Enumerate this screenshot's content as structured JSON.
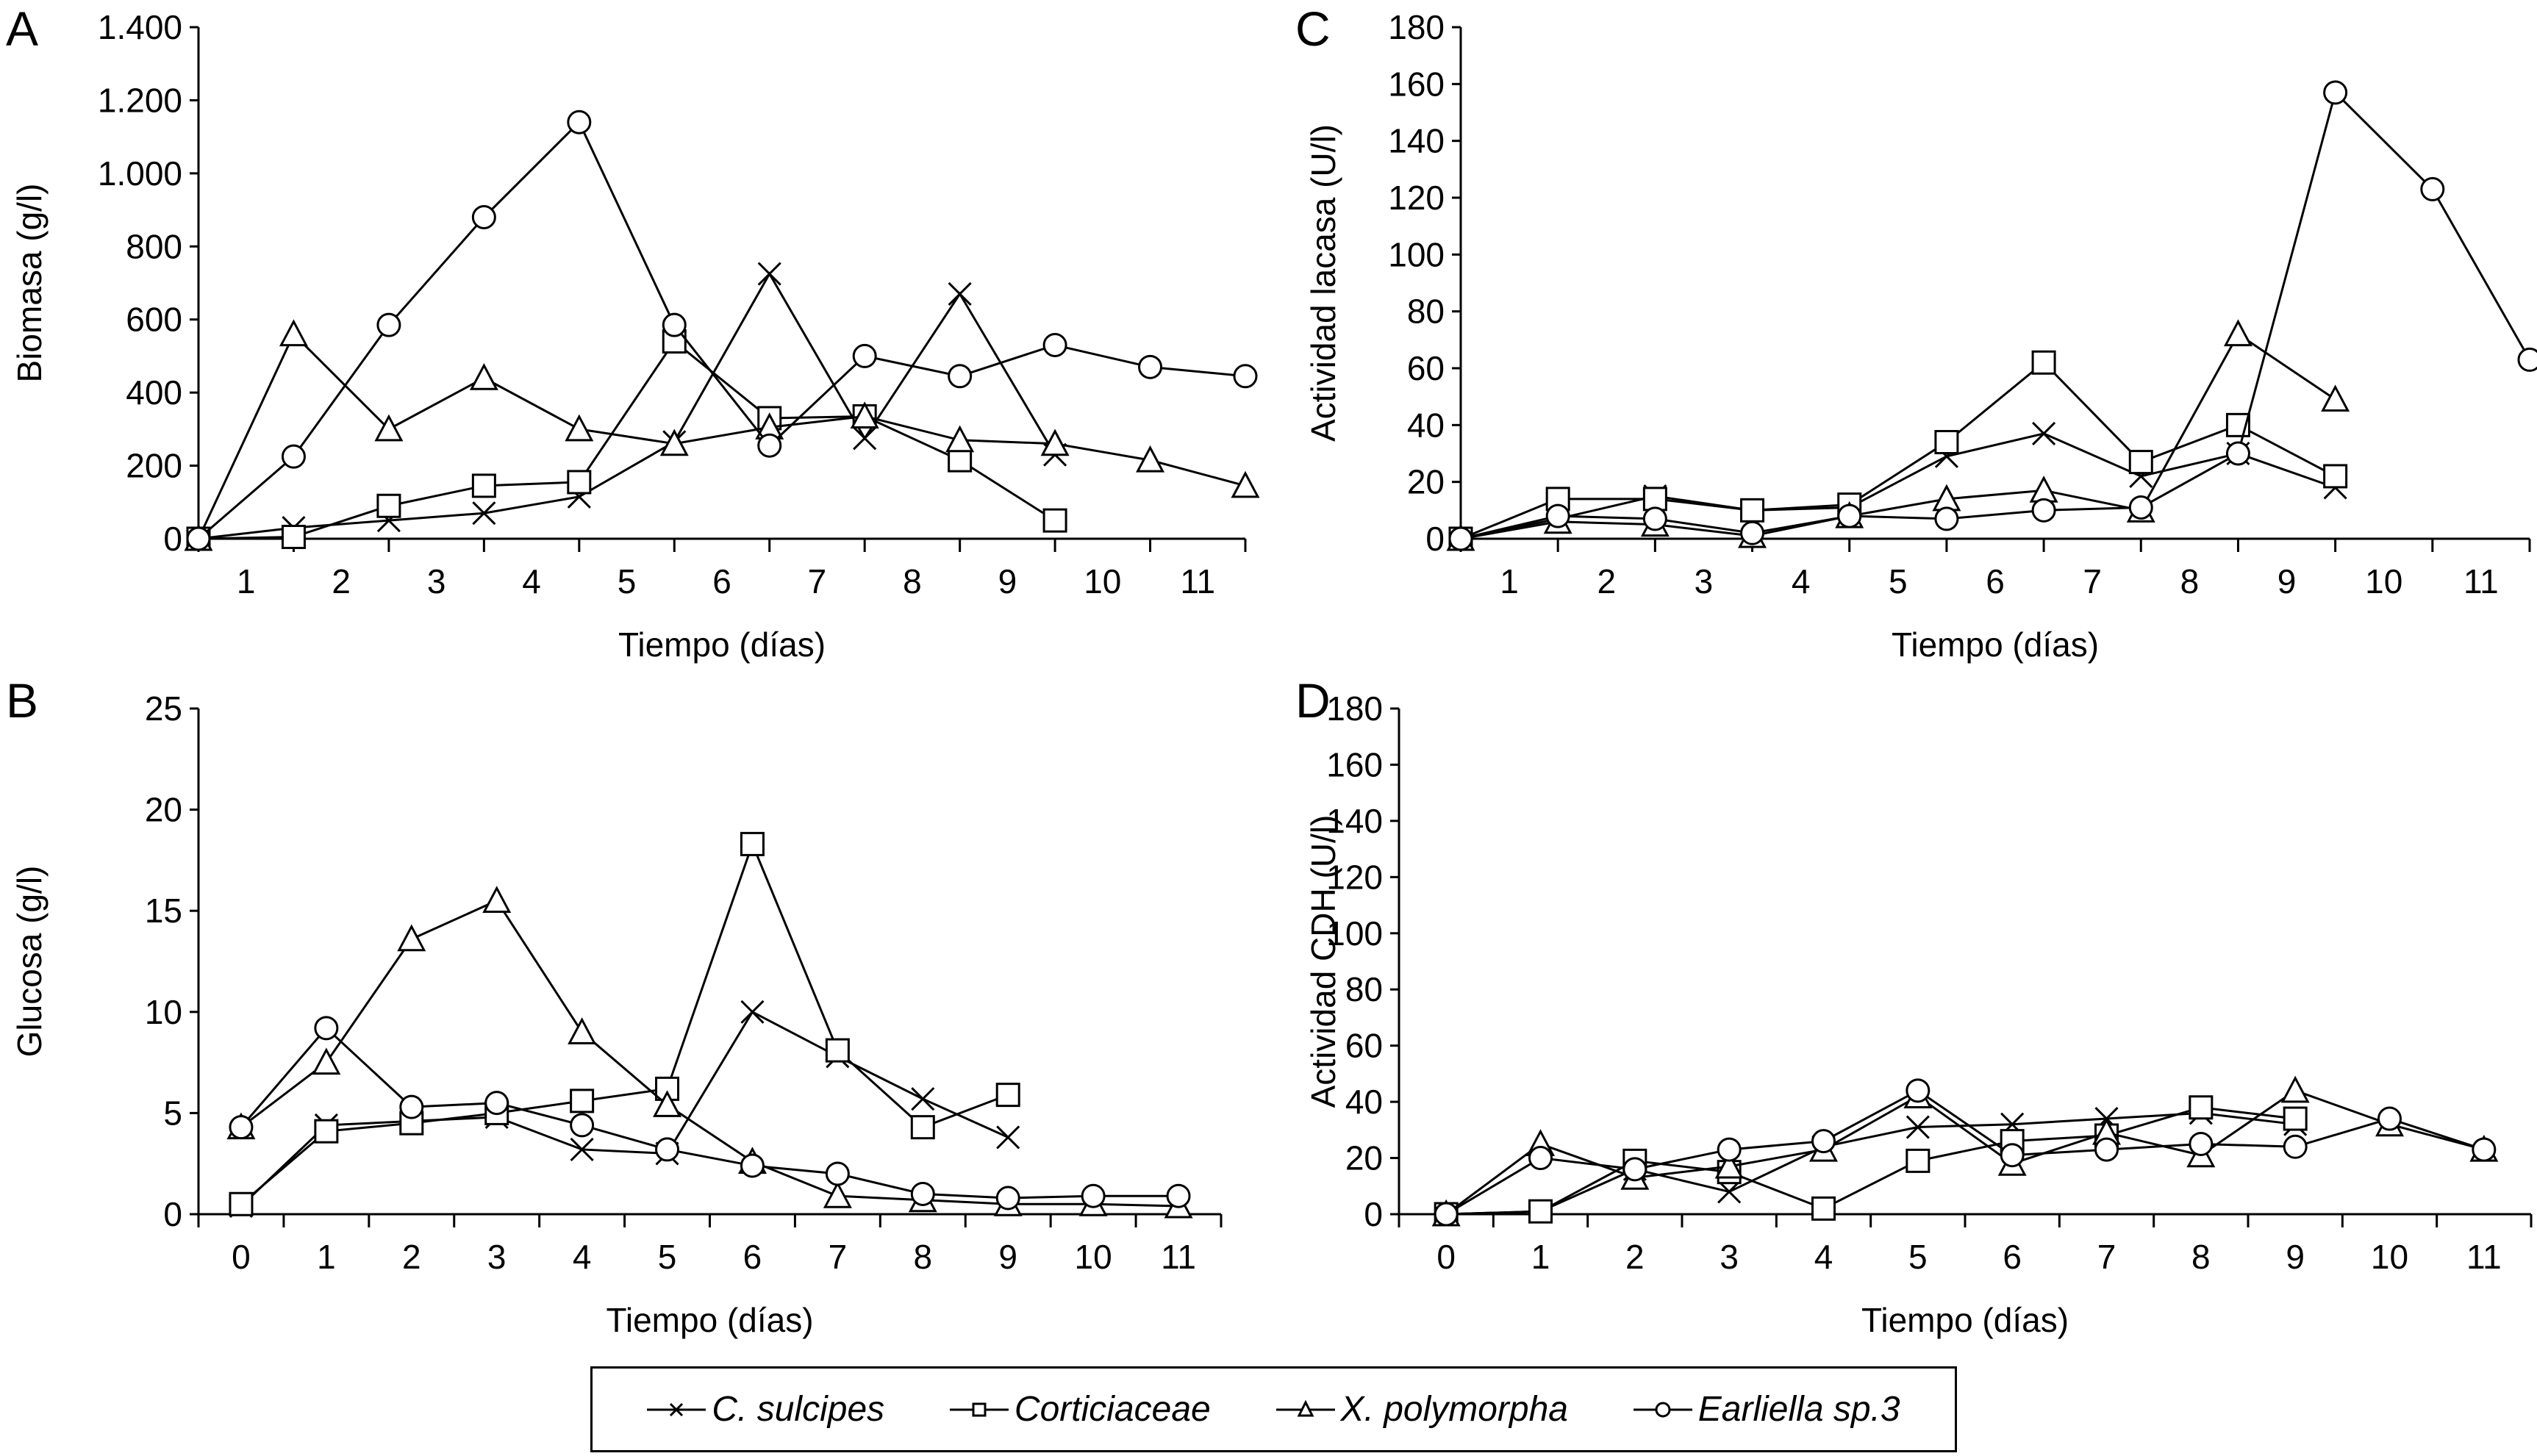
{
  "legend": {
    "items": [
      {
        "key": "c_sulcipes",
        "label": "C. sulcipes",
        "marker": "x"
      },
      {
        "key": "corticiaceae",
        "label": "Corticiaceae",
        "marker": "square"
      },
      {
        "key": "x_polymorpha",
        "label": "X. polymorpha",
        "marker": "triangle"
      },
      {
        "key": "earliella",
        "label": "Earliella sp.3",
        "marker": "circle"
      }
    ]
  },
  "chart_data": [
    {
      "id": "A",
      "panel_label": "A",
      "type": "line",
      "title": "",
      "xlabel": "Tiempo (días)",
      "ylabel": "Biomasa (g/l)",
      "x_tick_labels": [
        "1",
        "2",
        "3",
        "4",
        "5",
        "6",
        "7",
        "8",
        "9",
        "10",
        "11"
      ],
      "y_tick_labels": [
        "0",
        "200",
        "400",
        "600",
        "800",
        "1.000",
        "1.200",
        "1.400"
      ],
      "ylim": [
        0,
        1400
      ],
      "x": [
        0,
        1,
        2,
        3,
        4,
        5,
        6,
        7,
        8,
        9,
        10,
        11
      ],
      "series": [
        {
          "name": "C. sulcipes",
          "marker": "x",
          "values": [
            0,
            30,
            50,
            70,
            115,
            265,
            725,
            275,
            670,
            230
          ]
        },
        {
          "name": "Corticiaceae",
          "marker": "square",
          "values": [
            0,
            5,
            90,
            145,
            155,
            540,
            330,
            335,
            215,
            50
          ]
        },
        {
          "name": "X. polymorpha",
          "marker": "triangle",
          "values": [
            0,
            560,
            300,
            440,
            300,
            260,
            305,
            335,
            270,
            260,
            215,
            145
          ]
        },
        {
          "name": "Earliella sp.3",
          "marker": "circle",
          "values": [
            0,
            225,
            585,
            880,
            1140,
            585,
            255,
            500,
            445,
            530,
            470,
            445
          ]
        }
      ]
    },
    {
      "id": "C",
      "panel_label": "C",
      "type": "line",
      "title": "",
      "xlabel": "Tiempo (días)",
      "ylabel": "Actividad lacasa (U/l)",
      "x_tick_labels": [
        "1",
        "2",
        "3",
        "4",
        "5",
        "6",
        "7",
        "8",
        "9",
        "10",
        "11"
      ],
      "y_tick_labels": [
        "0",
        "20",
        "40",
        "60",
        "80",
        "100",
        "120",
        "140",
        "160",
        "180"
      ],
      "ylim": [
        0,
        180
      ],
      "x": [
        0,
        1,
        2,
        3,
        4,
        5,
        6,
        7,
        8,
        9,
        10,
        11
      ],
      "series": [
        {
          "name": "C. sulcipes",
          "marker": "x",
          "values": [
            0,
            7,
            15,
            10,
            11,
            29,
            37,
            22,
            30,
            18
          ]
        },
        {
          "name": "Corticiaceae",
          "marker": "square",
          "values": [
            0,
            14,
            14,
            10,
            12,
            34,
            62,
            27,
            40,
            22
          ]
        },
        {
          "name": "X. polymorpha",
          "marker": "triangle",
          "values": [
            0,
            6,
            5,
            1,
            8,
            14,
            17,
            10,
            72,
            49
          ]
        },
        {
          "name": "Earliella sp.3",
          "marker": "circle",
          "values": [
            0,
            8,
            7,
            2,
            8,
            7,
            10,
            11,
            30,
            157,
            123,
            63
          ]
        }
      ]
    },
    {
      "id": "B",
      "panel_label": "B",
      "type": "line",
      "title": "",
      "xlabel": "Tiempo (días)",
      "ylabel": "Glucosa (g/l)",
      "x_tick_labels": [
        "0",
        "1",
        "2",
        "3",
        "4",
        "5",
        "6",
        "7",
        "8",
        "9",
        "10",
        "11"
      ],
      "y_tick_labels": [
        "0",
        "5",
        "10",
        "15",
        "20",
        "25"
      ],
      "ylim": [
        0,
        25
      ],
      "x": [
        0,
        1,
        2,
        3,
        4,
        5,
        6,
        7,
        8,
        9,
        10,
        11
      ],
      "series": [
        {
          "name": "C. sulcipes",
          "marker": "x",
          "values": [
            0.4,
            4.4,
            4.6,
            4.8,
            3.2,
            3.0,
            10.0,
            7.8,
            5.7,
            3.8
          ]
        },
        {
          "name": "Corticiaceae",
          "marker": "square",
          "values": [
            0.5,
            4.1,
            4.5,
            5.0,
            5.6,
            6.2,
            18.3,
            8.1,
            4.3,
            5.9
          ]
        },
        {
          "name": "X. polymorpha",
          "marker": "triangle",
          "values": [
            4.3,
            7.5,
            13.6,
            15.5,
            9.0,
            5.4,
            2.6,
            0.9,
            0.7,
            0.5,
            0.5,
            0.4
          ]
        },
        {
          "name": "Earliella sp.3",
          "marker": "circle",
          "values": [
            4.3,
            9.2,
            5.3,
            5.5,
            4.4,
            3.2,
            2.4,
            2.0,
            1.0,
            0.8,
            0.9,
            0.9
          ]
        }
      ]
    },
    {
      "id": "D",
      "panel_label": "D",
      "type": "line",
      "title": "",
      "xlabel": "Tiempo (días)",
      "ylabel": "Actividad CDH (U/l)",
      "x_tick_labels": [
        "0",
        "1",
        "2",
        "3",
        "4",
        "5",
        "6",
        "7",
        "8",
        "9",
        "10",
        "11"
      ],
      "y_tick_labels": [
        "0",
        "20",
        "40",
        "60",
        "80",
        "100",
        "120",
        "140",
        "160",
        "180"
      ],
      "ylim": [
        0,
        180
      ],
      "x": [
        0,
        1,
        2,
        3,
        4,
        5,
        6,
        7,
        8,
        9,
        10,
        11
      ],
      "series": [
        {
          "name": "C. sulcipes",
          "marker": "x",
          "values": [
            0,
            1,
            16,
            8,
            24,
            31,
            32,
            34,
            36,
            32
          ]
        },
        {
          "name": "Corticiaceae",
          "marker": "square",
          "values": [
            0,
            1,
            19,
            15,
            2,
            19,
            26,
            28,
            38,
            34
          ]
        },
        {
          "name": "X. polymorpha",
          "marker": "triangle",
          "values": [
            0,
            25,
            13,
            17,
            23,
            42,
            18,
            29,
            21,
            44,
            32,
            23
          ]
        },
        {
          "name": "Earliella sp.3",
          "marker": "circle",
          "values": [
            0,
            20,
            16,
            23,
            26,
            44,
            21,
            23,
            25,
            24,
            34,
            23
          ]
        }
      ]
    }
  ]
}
